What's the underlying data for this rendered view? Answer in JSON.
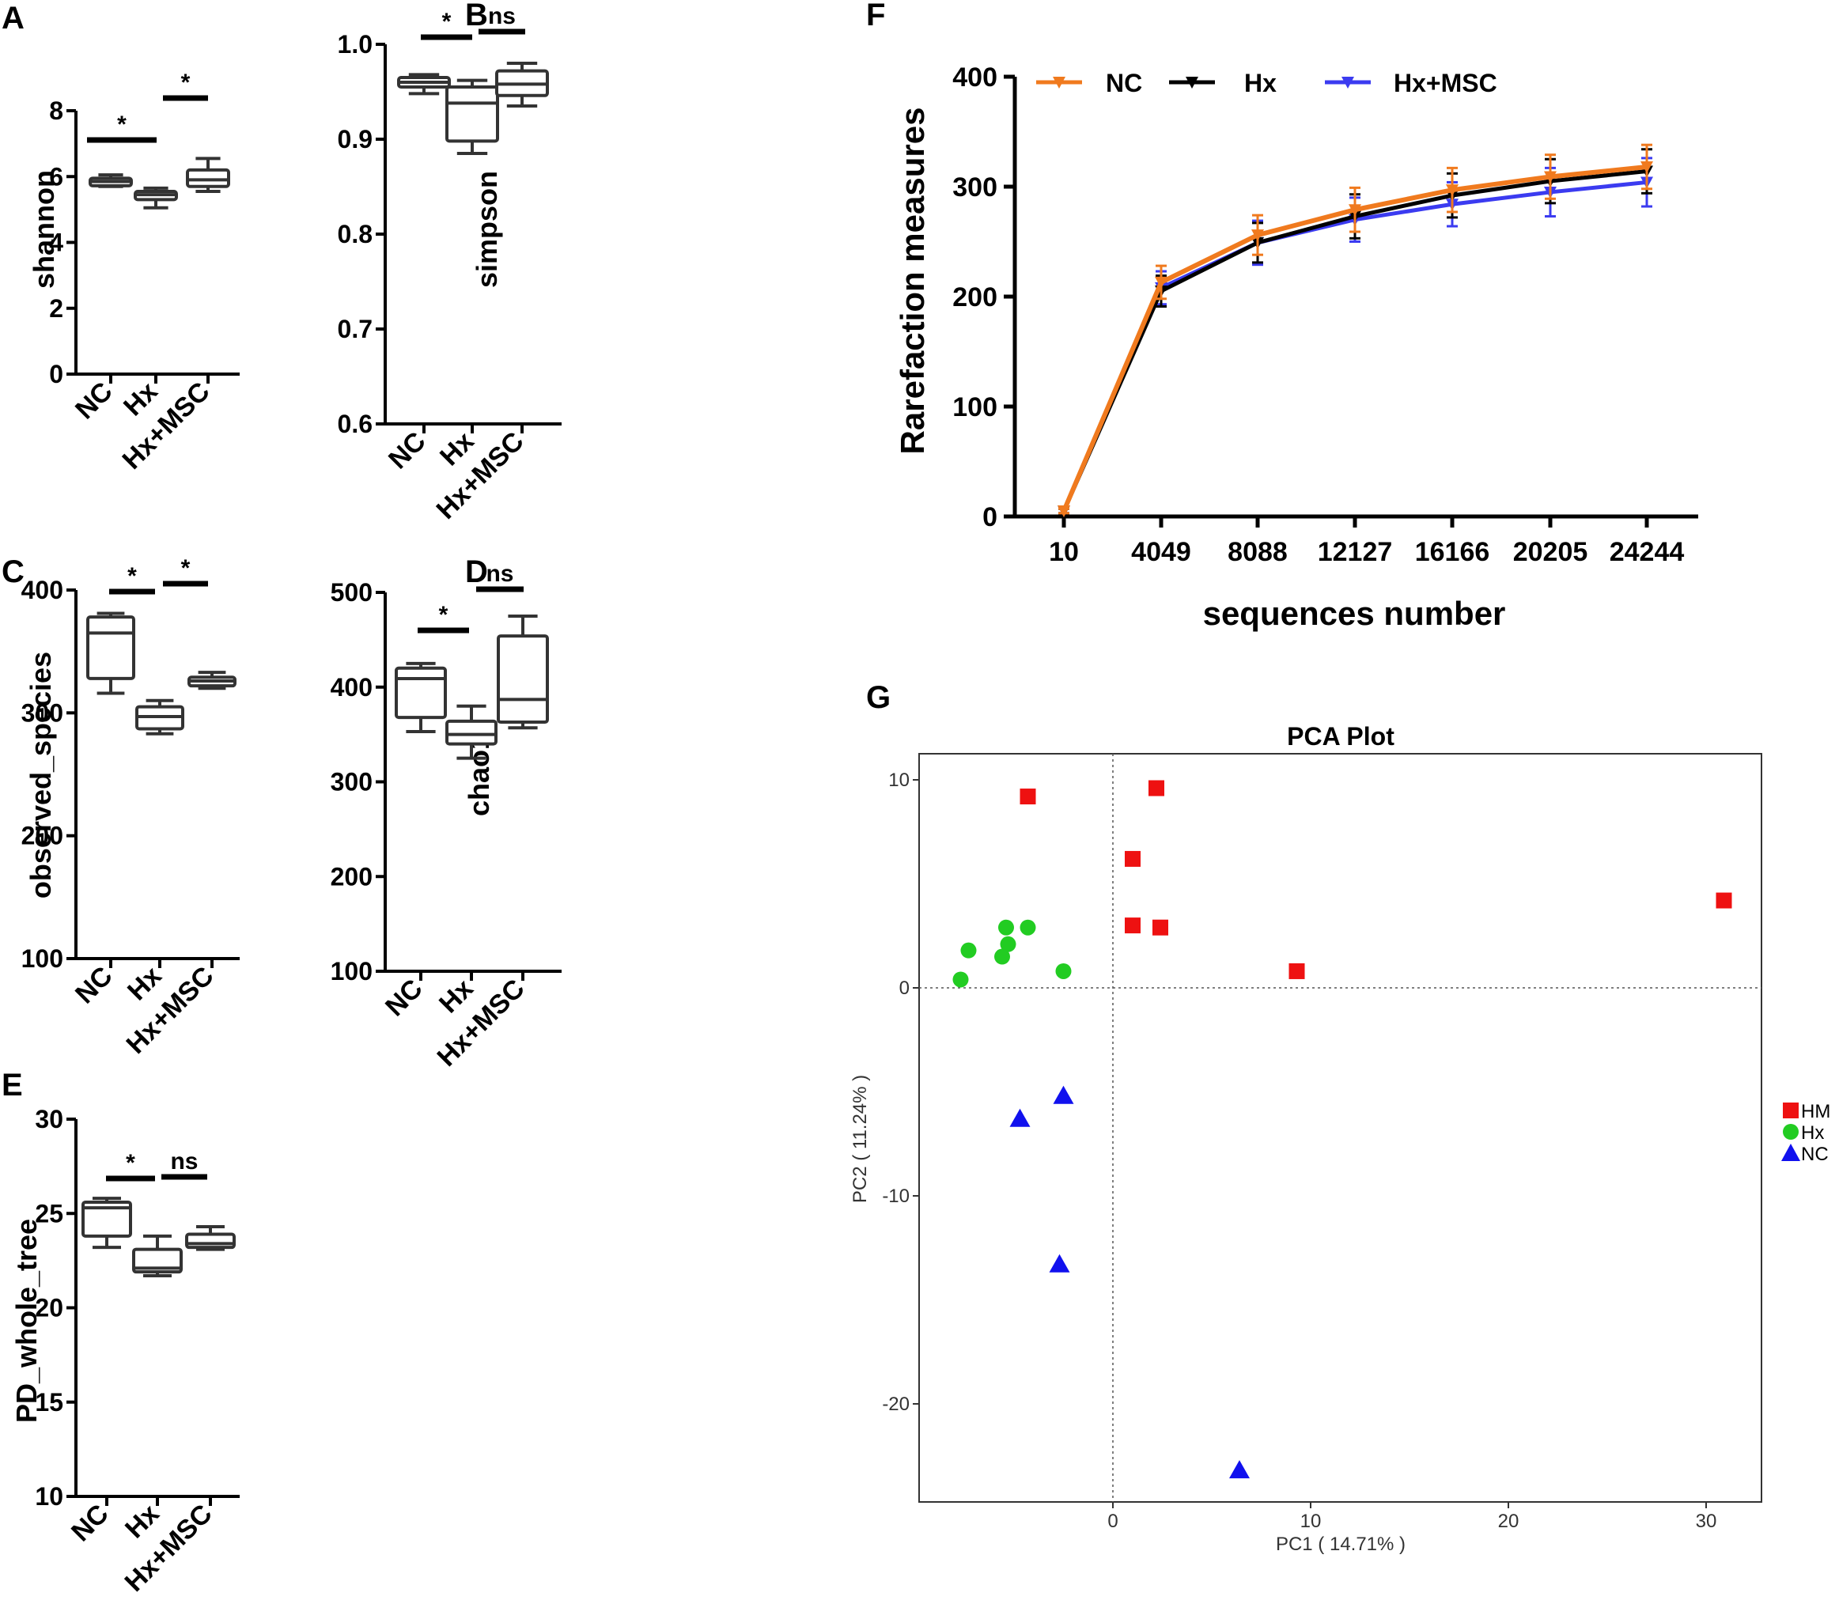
{
  "chart_data": [
    {
      "id": "A",
      "letter": "A",
      "type": "box",
      "ylabel": "shannon",
      "ylim": [
        0,
        8
      ],
      "yticks": [
        0,
        2,
        4,
        6,
        8
      ],
      "categories": [
        "NC",
        "Hx",
        "Hx+MSC"
      ],
      "boxes": [
        {
          "min": 5.7,
          "q1": 5.72,
          "median": 5.85,
          "q3": 5.95,
          "max": 6.05
        },
        {
          "min": 5.05,
          "q1": 5.3,
          "median": 5.45,
          "q3": 5.55,
          "max": 5.65
        },
        {
          "min": 5.55,
          "q1": 5.7,
          "median": 5.9,
          "q3": 6.2,
          "max": 6.55
        }
      ],
      "brackets": [
        {
          "from": 0,
          "to": 1,
          "label": "*"
        },
        {
          "from": 1,
          "to": 2,
          "label": "*"
        }
      ]
    },
    {
      "id": "B",
      "letter": "B",
      "type": "box",
      "ylabel": "simpson",
      "ylim": [
        0.6,
        1.0
      ],
      "yticks": [
        "0.6",
        "0.7",
        "0.8",
        "0.9",
        "1.0"
      ],
      "categories": [
        "NC",
        "Hx",
        "Hx+MSC"
      ],
      "boxes": [
        {
          "min": 0.948,
          "q1": 0.955,
          "median": 0.96,
          "q3": 0.965,
          "max": 0.968
        },
        {
          "min": 0.885,
          "q1": 0.898,
          "median": 0.938,
          "q3": 0.955,
          "max": 0.962
        },
        {
          "min": 0.935,
          "q1": 0.946,
          "median": 0.958,
          "q3": 0.972,
          "max": 0.98
        }
      ],
      "brackets": [
        {
          "from": 0,
          "to": 1,
          "label": "*"
        },
        {
          "from": 1,
          "to": 2,
          "label": "ns"
        }
      ]
    },
    {
      "id": "C",
      "letter": "C",
      "type": "box",
      "ylabel": "observed_species",
      "ylim": [
        100,
        400
      ],
      "yticks": [
        100,
        200,
        300,
        400
      ],
      "categories": [
        "NC",
        "Hx",
        "Hx+MSC"
      ],
      "boxes": [
        {
          "min": 316,
          "q1": 328,
          "median": 365,
          "q3": 378,
          "max": 381
        },
        {
          "min": 283,
          "q1": 287,
          "median": 297,
          "q3": 305,
          "max": 310
        },
        {
          "min": 320,
          "q1": 322,
          "median": 326,
          "q3": 329,
          "max": 333
        }
      ],
      "brackets": [
        {
          "from": 0,
          "to": 1,
          "label": "*"
        },
        {
          "from": 1,
          "to": 2,
          "label": "*"
        }
      ]
    },
    {
      "id": "D",
      "letter": "D",
      "type": "box",
      "ylabel": "chao1",
      "ylim": [
        100,
        500
      ],
      "yticks": [
        100,
        200,
        300,
        400,
        500
      ],
      "categories": [
        "NC",
        "Hx",
        "Hx+MSC"
      ],
      "boxes": [
        {
          "min": 353,
          "q1": 368,
          "median": 409,
          "q3": 420,
          "max": 425
        },
        {
          "min": 325,
          "q1": 340,
          "median": 350,
          "q3": 364,
          "max": 380
        },
        {
          "min": 357,
          "q1": 363,
          "median": 387,
          "q3": 454,
          "max": 475
        }
      ],
      "brackets": [
        {
          "from": 0,
          "to": 1,
          "label": "*"
        },
        {
          "from": 1,
          "to": 2,
          "label": "ns"
        }
      ]
    },
    {
      "id": "E",
      "letter": "E",
      "type": "box",
      "ylabel": "PD_whole_tree",
      "ylim": [
        10,
        30
      ],
      "yticks": [
        10,
        15,
        20,
        25,
        30
      ],
      "categories": [
        "NC",
        "Hx",
        "Hx+MSC"
      ],
      "boxes": [
        {
          "min": 23.2,
          "q1": 23.8,
          "median": 25.3,
          "q3": 25.6,
          "max": 25.8
        },
        {
          "min": 21.7,
          "q1": 21.9,
          "median": 22.1,
          "q3": 23.1,
          "max": 23.8
        },
        {
          "min": 23.1,
          "q1": 23.2,
          "median": 23.4,
          "q3": 23.9,
          "max": 24.3
        }
      ],
      "brackets": [
        {
          "from": 0,
          "to": 1,
          "label": "*"
        },
        {
          "from": 1,
          "to": 2,
          "label": "ns"
        }
      ]
    },
    {
      "id": "F",
      "letter": "F",
      "type": "line",
      "xlabel": "sequences number",
      "ylabel": "Rarefaction measures",
      "ylim": [
        0,
        400
      ],
      "yticks": [
        0,
        100,
        200,
        300,
        400
      ],
      "x": [
        "10",
        "4049",
        "8088",
        "12127",
        "16166",
        "20205",
        "24244"
      ],
      "series": [
        {
          "name": "NC",
          "color": "#f07a1e",
          "values": [
            5,
            213,
            256,
            279,
            297,
            309,
            318
          ],
          "err": [
            2,
            15,
            18,
            20,
            20,
            20,
            20
          ]
        },
        {
          "name": "Hx",
          "color": "#000000",
          "values": [
            5,
            205,
            249,
            273,
            292,
            305,
            314
          ],
          "err": [
            2,
            14,
            18,
            20,
            20,
            20,
            20
          ]
        },
        {
          "name": "Hx+MSC",
          "color": "#3b3bf0",
          "values": [
            5,
            208,
            249,
            270,
            284,
            295,
            304
          ],
          "err": [
            2,
            15,
            20,
            20,
            20,
            22,
            22
          ]
        }
      ]
    },
    {
      "id": "G",
      "letter": "G",
      "type": "scatter",
      "title": "PCA Plot",
      "xlabel": "PC1 ( 14.71% )",
      "ylabel": "PC2 ( 11.24% )",
      "xlim": [
        -9.8,
        33
      ],
      "ylim": [
        -24.5,
        11
      ],
      "xticks": [
        0,
        10,
        20,
        30
      ],
      "yticks": [
        "10",
        "0",
        "-10",
        "-20"
      ],
      "series": [
        {
          "name": "HM",
          "marker": "square",
          "color": "#ee1111",
          "points": [
            [
              -4.3,
              9.2
            ],
            [
              2.2,
              9.6
            ],
            [
              1.0,
              6.2
            ],
            [
              1.0,
              3.0
            ],
            [
              2.4,
              2.9
            ],
            [
              9.3,
              0.8
            ],
            [
              30.9,
              4.2
            ]
          ]
        },
        {
          "name": "Hx",
          "marker": "circle",
          "color": "#22cc22",
          "points": [
            [
              -7.7,
              0.4
            ],
            [
              -7.3,
              1.8
            ],
            [
              -5.6,
              1.5
            ],
            [
              -5.4,
              2.9
            ],
            [
              -5.3,
              2.1
            ],
            [
              -4.3,
              2.9
            ],
            [
              -2.5,
              0.8
            ]
          ]
        },
        {
          "name": "NC",
          "marker": "triangle",
          "color": "#1111ee",
          "points": [
            [
              -4.7,
              -6.3
            ],
            [
              -2.5,
              -5.2
            ],
            [
              -2.7,
              -13.3
            ],
            [
              6.4,
              -23.2
            ]
          ]
        }
      ]
    }
  ]
}
